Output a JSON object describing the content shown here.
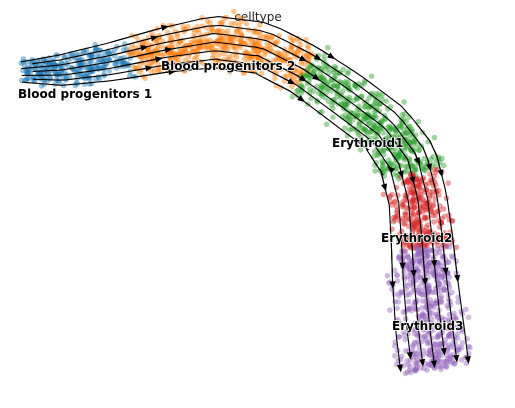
{
  "title": "celltype",
  "clusters": [
    {
      "name": "Blood progenitors 1",
      "color": "#1f77b4"
    },
    {
      "name": "Blood progenitors 2",
      "color": "#ff7f0e"
    },
    {
      "name": "Erythroid1",
      "color": "#2ca02c"
    },
    {
      "name": "Erythroid2",
      "color": "#d62728"
    },
    {
      "name": "Erythroid3",
      "color": "#9467bd"
    }
  ]
}
